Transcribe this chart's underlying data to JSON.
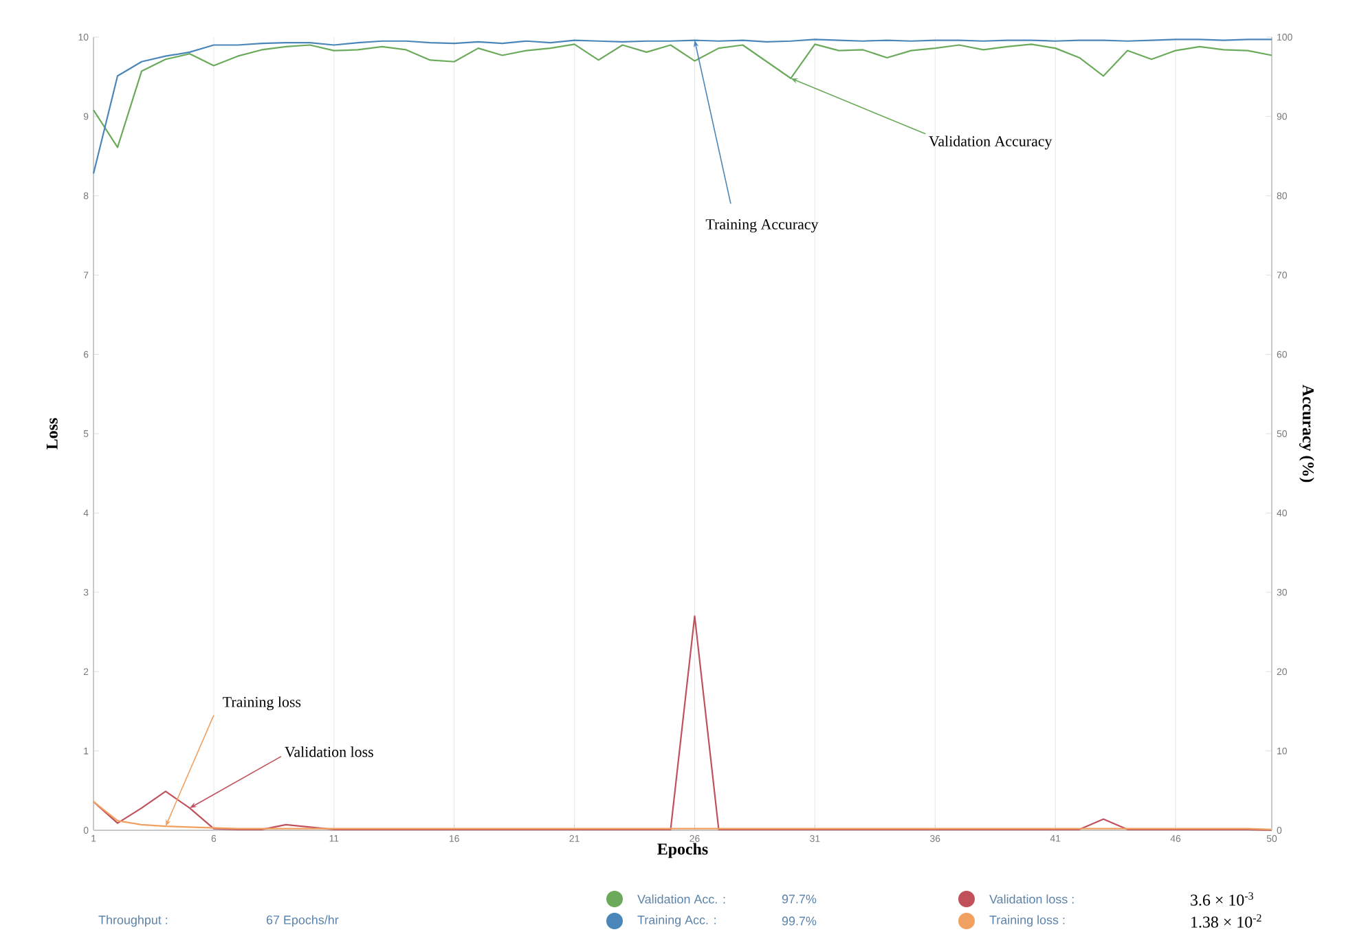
{
  "chart_data": {
    "type": "line",
    "xlabel": "Epochs",
    "ylabel": "Loss",
    "y2label": "Accuracy (%)",
    "x": [
      1,
      2,
      3,
      4,
      5,
      6,
      7,
      8,
      9,
      10,
      11,
      12,
      13,
      14,
      15,
      16,
      17,
      18,
      19,
      20,
      21,
      22,
      23,
      24,
      25,
      26,
      27,
      28,
      29,
      30,
      31,
      32,
      33,
      34,
      35,
      36,
      37,
      38,
      39,
      40,
      41,
      42,
      43,
      44,
      45,
      46,
      47,
      48,
      49,
      50
    ],
    "xlim": [
      1,
      50
    ],
    "xticks": [
      1,
      6,
      11,
      16,
      21,
      26,
      31,
      36,
      41,
      46,
      50
    ],
    "ylim": [
      0,
      10
    ],
    "yticks": [
      0,
      1,
      2,
      3,
      4,
      5,
      6,
      7,
      8,
      9,
      10
    ],
    "y2lim": [
      0,
      100
    ],
    "y2ticks": [
      0,
      10,
      20,
      30,
      40,
      50,
      60,
      70,
      80,
      90,
      100
    ],
    "grid": "x",
    "legend": false,
    "marker": "none",
    "line_style": "solid",
    "series": [
      {
        "name": "Validation Accuracy",
        "color": "#6aaa5a",
        "axis": "y2",
        "values": [
          90.8,
          86.1,
          95.7,
          97.2,
          97.9,
          96.4,
          97.6,
          98.4,
          98.8,
          99.0,
          98.3,
          98.4,
          98.8,
          98.4,
          97.1,
          96.9,
          98.6,
          97.7,
          98.3,
          98.6,
          99.1,
          97.1,
          99.0,
          98.1,
          99.0,
          97.0,
          98.6,
          99.0,
          96.9,
          94.8,
          99.1,
          98.3,
          98.4,
          97.4,
          98.3,
          98.6,
          99.0,
          98.4,
          98.8,
          99.1,
          98.6,
          97.4,
          95.1,
          98.3,
          97.2,
          98.3,
          98.8,
          98.4,
          98.3,
          97.7
        ]
      },
      {
        "name": "Training Accuracy",
        "color": "#4a86b8",
        "axis": "y2",
        "values": [
          82.8,
          95.1,
          96.9,
          97.6,
          98.1,
          99.0,
          99.0,
          99.2,
          99.3,
          99.3,
          99.0,
          99.3,
          99.5,
          99.5,
          99.3,
          99.2,
          99.4,
          99.2,
          99.5,
          99.3,
          99.6,
          99.5,
          99.4,
          99.5,
          99.5,
          99.6,
          99.5,
          99.6,
          99.4,
          99.5,
          99.7,
          99.6,
          99.5,
          99.6,
          99.5,
          99.6,
          99.6,
          99.5,
          99.6,
          99.6,
          99.5,
          99.6,
          99.6,
          99.5,
          99.6,
          99.7,
          99.7,
          99.6,
          99.7,
          99.7
        ]
      },
      {
        "name": "Validation loss",
        "color": "#c0505a",
        "axis": "y",
        "values": [
          0.36,
          0.09,
          0.28,
          0.49,
          0.28,
          0.02,
          0.01,
          0.01,
          0.07,
          0.04,
          0.01,
          0.01,
          0.01,
          0.01,
          0.01,
          0.01,
          0.01,
          0.01,
          0.01,
          0.01,
          0.01,
          0.01,
          0.01,
          0.01,
          0.01,
          2.7,
          0.01,
          0.01,
          0.01,
          0.01,
          0.01,
          0.01,
          0.01,
          0.01,
          0.01,
          0.01,
          0.01,
          0.01,
          0.01,
          0.01,
          0.01,
          0.01,
          0.14,
          0.01,
          0.01,
          0.01,
          0.01,
          0.01,
          0.01,
          0.0
        ]
      },
      {
        "name": "Training loss",
        "color": "#f0a060",
        "axis": "y",
        "values": [
          0.36,
          0.12,
          0.07,
          0.05,
          0.04,
          0.03,
          0.02,
          0.02,
          0.02,
          0.02,
          0.02,
          0.02,
          0.02,
          0.02,
          0.02,
          0.02,
          0.02,
          0.02,
          0.02,
          0.02,
          0.02,
          0.02,
          0.02,
          0.02,
          0.02,
          0.02,
          0.02,
          0.02,
          0.02,
          0.02,
          0.02,
          0.02,
          0.02,
          0.02,
          0.02,
          0.02,
          0.02,
          0.02,
          0.02,
          0.02,
          0.02,
          0.02,
          0.02,
          0.02,
          0.02,
          0.02,
          0.02,
          0.02,
          0.02,
          0.01
        ]
      }
    ],
    "annotations": [
      "Throughput :",
      "67 Epochs/hr",
      "Validation Acc. :",
      "97.7%",
      "Training Acc. :",
      "99.7%",
      "Validation loss :",
      "3.6 × 10$^{-3}$",
      "Training loss :",
      "1.38 × 10$^{-2}$"
    ]
  }
}
